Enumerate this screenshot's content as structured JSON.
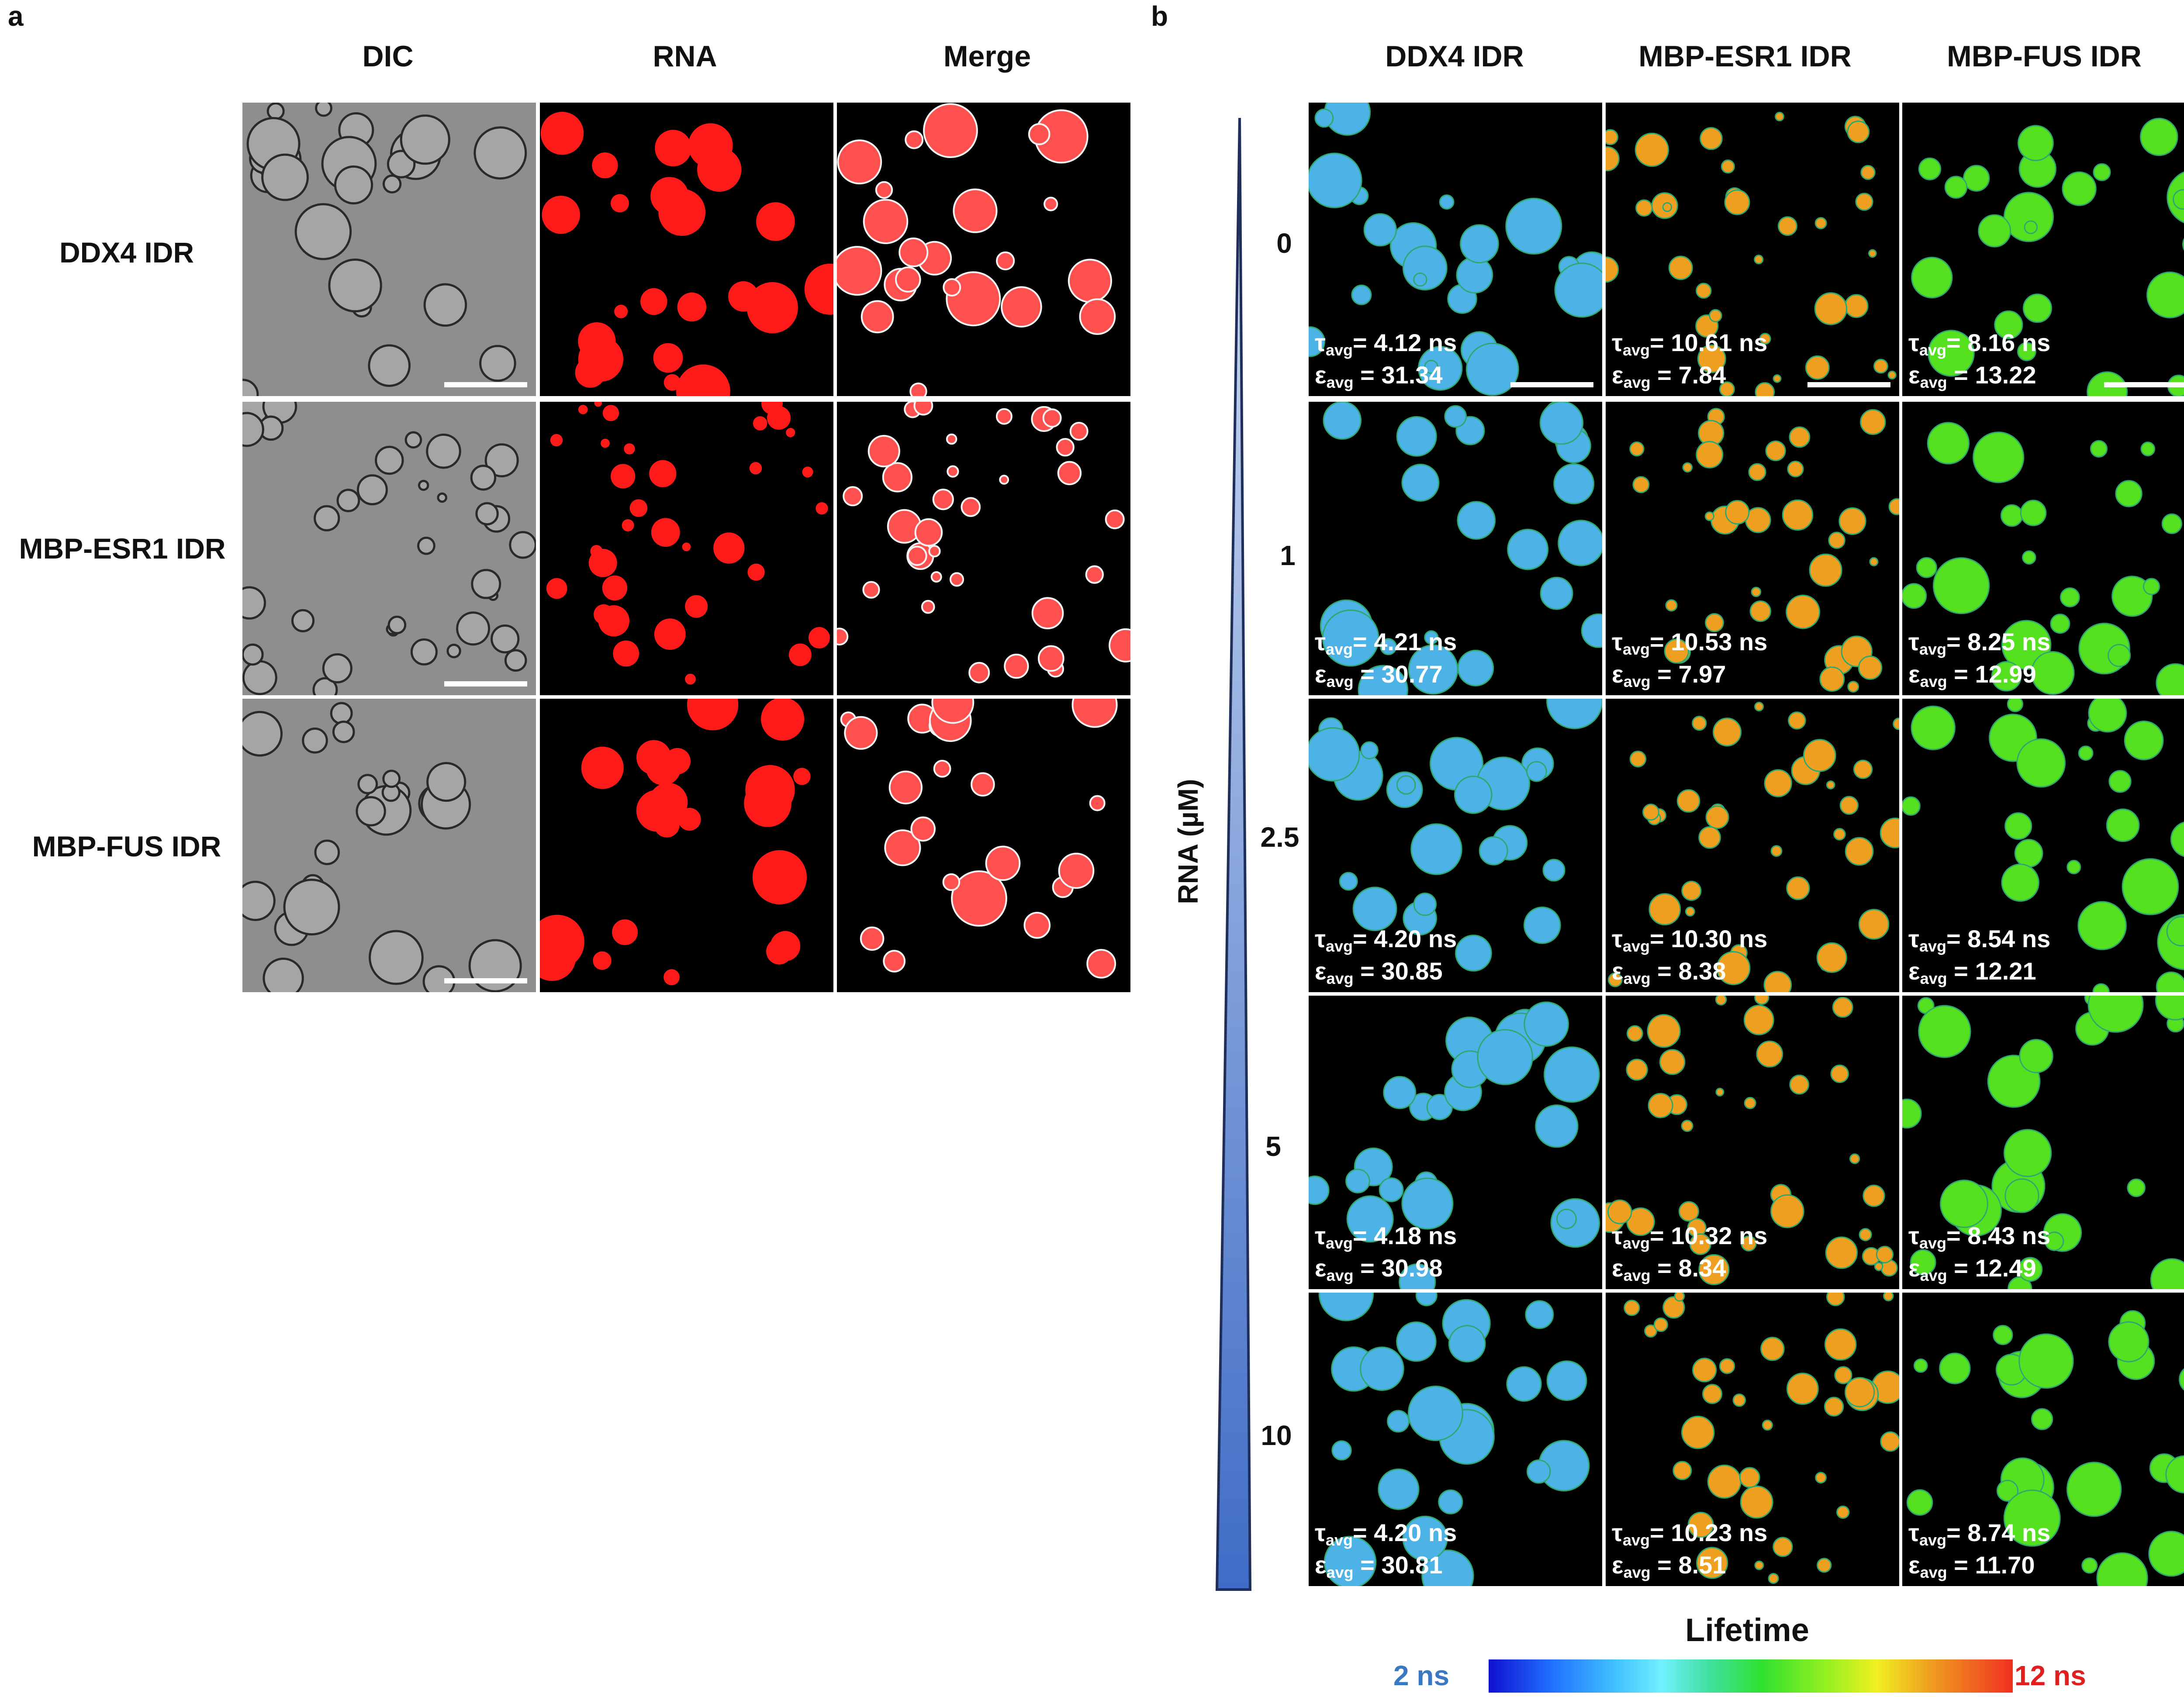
{
  "panel_a": {
    "letter": "a",
    "columns": [
      "DIC",
      "RNA",
      "Merge"
    ],
    "rows": [
      "DDX4 IDR",
      "MBP-ESR1 IDR",
      "MBP-FUS IDR"
    ]
  },
  "panel_b": {
    "letter": "b",
    "columns": [
      "DDX4 IDR",
      "MBP-ESR1 IDR",
      "MBP-FUS IDR"
    ],
    "axis_label": "RNA (µM)",
    "concentrations": [
      "0",
      "1",
      "2.5",
      "5",
      "10"
    ],
    "tau_symbol": "τ",
    "eps_symbol": "ε",
    "avg_sub": "avg",
    "tau_unit": " ns",
    "rows": [
      {
        "tau": [
          "4.12",
          "10.61",
          "8.16"
        ],
        "eps": [
          "31.34",
          "7.84",
          "13.22"
        ]
      },
      {
        "tau": [
          "4.21",
          "10.53",
          "8.25"
        ],
        "eps": [
          "30.77",
          "7.97",
          "12.99"
        ]
      },
      {
        "tau": [
          "4.20",
          "10.30",
          "8.54"
        ],
        "eps": [
          "30.85",
          "8.38",
          "12.21"
        ]
      },
      {
        "tau": [
          "4.18",
          "10.32",
          "8.43"
        ],
        "eps": [
          "30.98",
          "8.34",
          "12.49"
        ]
      },
      {
        "tau": [
          "4.20",
          "10.23",
          "8.74"
        ],
        "eps": [
          "30.81",
          "8.51",
          "11.70"
        ]
      }
    ],
    "colorbar": {
      "title": "Lifetime",
      "min_label": "2 ns",
      "max_label": "12 ns",
      "min_value": 2,
      "max_value": 12
    }
  },
  "colors": {
    "ddx4": "#4db3e6",
    "esr1": "#f0a020",
    "fus": "#55e020",
    "rna": "#ff1a1a",
    "label_min": "#3a78c2",
    "label_max": "#e02020"
  }
}
